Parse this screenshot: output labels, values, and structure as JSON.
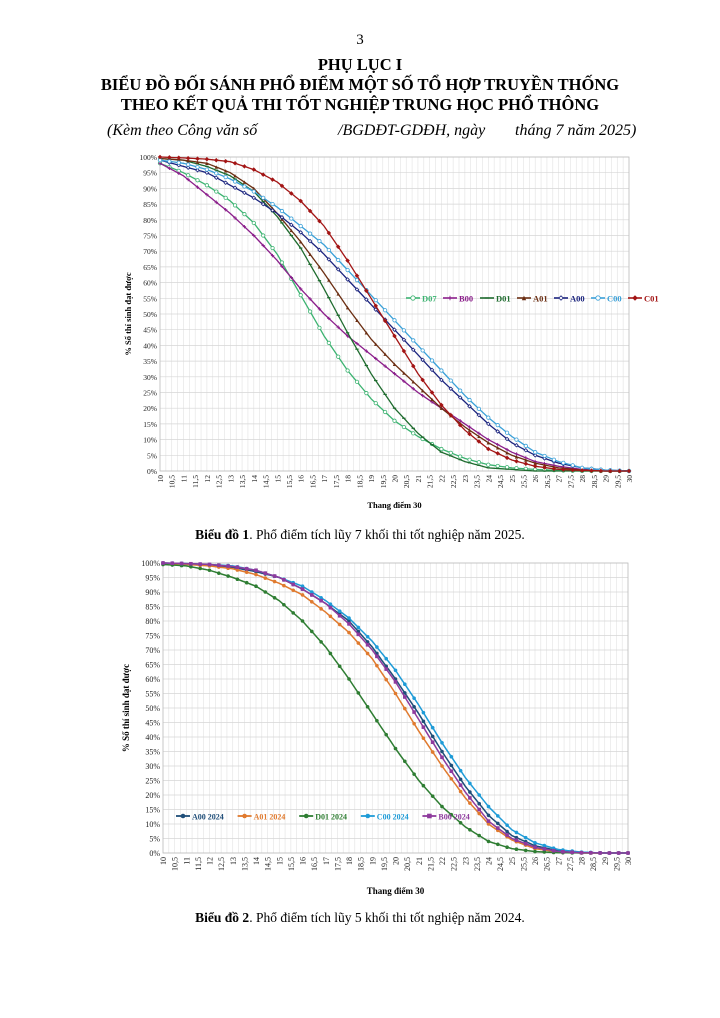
{
  "page_number": "3",
  "header": {
    "line1": "PHỤ LỤC I",
    "line2": "BIỂU ĐỒ ĐỐI SÁNH PHỔ ĐIỂM MỘT SỐ TỔ HỢP TRUYỀN THỐNG",
    "line3": "THEO KẾT QUẢ THI TỐT NGHIỆP TRUNG HỌC PHỔ THÔNG",
    "sub_a": "(Kèm theo Công văn số",
    "sub_b": "/BGDĐT-GDĐH, ngày",
    "sub_c": "tháng 7 năm 2025)"
  },
  "captions": [
    {
      "label": "Biểu đồ 1",
      "text": ". Phổ điểm tích lũy 7 khối thi tốt nghiệp năm 2025."
    },
    {
      "label": "Biểu đồ 2",
      "text": ". Phổ điểm tích lũy 5 khối thi tốt nghiệp năm 2024."
    }
  ],
  "chart_data": [
    {
      "type": "line",
      "xlabel": "Thang điểm 30",
      "ylabel": "% Số thí sinh đạt được",
      "xlim": [
        10,
        30
      ],
      "ylim": [
        0,
        100
      ],
      "x_ticks": [
        "10",
        "10,5",
        "11",
        "11,5",
        "12",
        "12,5",
        "13",
        "13,5",
        "14",
        "14,5",
        "15",
        "15,5",
        "16",
        "16,5",
        "17",
        "17,5",
        "18",
        "18,5",
        "19",
        "19,5",
        "20",
        "20,5",
        "21",
        "21,5",
        "22",
        "22,5",
        "23",
        "23,5",
        "24",
        "24,5",
        "25",
        "25,5",
        "26",
        "26,5",
        "27",
        "27,5",
        "28",
        "28,5",
        "29",
        "29,5",
        "30"
      ],
      "y_ticks": [
        "0%",
        "5%",
        "10%",
        "15%",
        "20%",
        "25%",
        "30%",
        "35%",
        "40%",
        "45%",
        "50%",
        "55%",
        "60%",
        "65%",
        "70%",
        "75%",
        "80%",
        "85%",
        "90%",
        "95%",
        "100%"
      ],
      "grid": true,
      "legend_position": "right-middle",
      "series": [
        {
          "name": "D07",
          "color": "#3cb371",
          "marker": "open-circle",
          "x": [
            10,
            11,
            12,
            13,
            14,
            15,
            16,
            17,
            18,
            19,
            20,
            21,
            22,
            23,
            24,
            25,
            26,
            27,
            28,
            29,
            30
          ],
          "values": [
            98,
            95,
            91,
            86,
            79,
            69,
            56,
            43,
            32,
            23,
            16,
            11,
            7,
            4,
            2,
            1,
            0.5,
            0.2,
            0,
            0,
            0
          ]
        },
        {
          "name": "B00",
          "color": "#8b1e8b",
          "marker": "plus",
          "x": [
            10,
            11,
            12,
            13,
            14,
            15,
            16,
            17,
            18,
            19,
            20,
            21,
            22,
            23,
            24,
            25,
            26,
            27,
            28,
            29,
            30
          ],
          "values": [
            98,
            94,
            88,
            82,
            75,
            67,
            58,
            50,
            43,
            37,
            31,
            25,
            20,
            15,
            10,
            6,
            3,
            1.5,
            0.5,
            0,
            0
          ]
        },
        {
          "name": "D01",
          "color": "#1e6b2e",
          "marker": "dash",
          "x": [
            10,
            11,
            12,
            13,
            14,
            15,
            16,
            17,
            18,
            19,
            20,
            21,
            22,
            23,
            24,
            25,
            26,
            27,
            28,
            29,
            30
          ],
          "values": [
            99.5,
            99,
            97,
            94,
            89,
            81,
            71,
            58,
            44,
            31,
            20,
            12,
            6,
            3,
            1,
            0.5,
            0,
            0,
            0,
            0,
            0
          ]
        },
        {
          "name": "A01",
          "color": "#6b2e12",
          "marker": "triangle",
          "x": [
            10,
            11,
            12,
            13,
            14,
            15,
            16,
            17,
            18,
            19,
            20,
            21,
            22,
            23,
            24,
            25,
            26,
            27,
            28,
            29,
            30
          ],
          "values": [
            99.5,
            99,
            98,
            95,
            90,
            82,
            73,
            63,
            52,
            42,
            34,
            27,
            20,
            14,
            9,
            5,
            2.5,
            1,
            0.3,
            0,
            0
          ]
        },
        {
          "name": "A00",
          "color": "#1a237e",
          "marker": "open-diamond",
          "x": [
            10,
            11,
            12,
            13,
            14,
            15,
            16,
            17,
            18,
            19,
            20,
            21,
            22,
            23,
            24,
            25,
            26,
            27,
            28,
            29,
            30
          ],
          "values": [
            99,
            97,
            95,
            91,
            87,
            82,
            76,
            69,
            61,
            53,
            45,
            37,
            29,
            22,
            15,
            9,
            5,
            2.5,
            1,
            0.3,
            0
          ]
        },
        {
          "name": "C00",
          "color": "#3aa0d8",
          "marker": "open-circle",
          "x": [
            10,
            11,
            12,
            13,
            14,
            15,
            16,
            17,
            18,
            19,
            20,
            21,
            22,
            23,
            24,
            25,
            26,
            27,
            28,
            29,
            30
          ],
          "values": [
            99,
            98,
            96,
            93,
            89,
            84,
            78,
            72,
            64,
            56,
            48,
            40,
            32,
            24,
            17,
            11,
            6,
            3,
            1,
            0.3,
            0
          ]
        },
        {
          "name": "C01",
          "color": "#a31515",
          "marker": "diamond",
          "x": [
            10,
            11,
            12,
            13,
            14,
            15,
            16,
            17,
            18,
            19,
            20,
            21,
            22,
            23,
            24,
            25,
            26,
            27,
            28,
            29,
            30
          ],
          "values": [
            100,
            99.7,
            99.3,
            98.5,
            96,
            92,
            86,
            78,
            67,
            55,
            43,
            31,
            21,
            13,
            7,
            3.5,
            1.5,
            0.5,
            0.2,
            0,
            0
          ]
        }
      ]
    },
    {
      "type": "line",
      "xlabel": "Thang điểm 30",
      "ylabel": "% Số thí sinh đạt được",
      "xlim": [
        10,
        30
      ],
      "ylim": [
        0,
        100
      ],
      "x_ticks": [
        "10",
        "10,5",
        "11",
        "11,5",
        "12",
        "12,5",
        "13",
        "13,5",
        "14",
        "14,5",
        "15",
        "15,5",
        "16",
        "16,5",
        "17",
        "17,5",
        "18",
        "18,5",
        "19",
        "19,5",
        "20",
        "20,5",
        "21",
        "21,5",
        "22",
        "22,5",
        "23",
        "23,5",
        "24",
        "24,5",
        "25",
        "25,5",
        "26",
        "26,5",
        "27",
        "27,5",
        "28",
        "28,5",
        "29",
        "29,5",
        "30"
      ],
      "y_ticks": [
        "0%",
        "5%",
        "10%",
        "15%",
        "20%",
        "25%",
        "30%",
        "35%",
        "40%",
        "45%",
        "50%",
        "55%",
        "60%",
        "65%",
        "70%",
        "75%",
        "80%",
        "85%",
        "90%",
        "95%",
        "100%"
      ],
      "grid": true,
      "legend_position": "bottom-left",
      "series": [
        {
          "name": "A00 2024",
          "color": "#1f4e79",
          "marker": "dot",
          "x": [
            10,
            11,
            12,
            13,
            14,
            15,
            16,
            17,
            18,
            19,
            20,
            21,
            22,
            23,
            24,
            25,
            26,
            27,
            28,
            29,
            30
          ],
          "values": [
            100,
            99.8,
            99.3,
            98.5,
            97,
            95,
            91,
            86,
            80,
            71,
            60,
            48,
            35,
            23,
            13,
            6,
            2.5,
            0.8,
            0.2,
            0,
            0
          ]
        },
        {
          "name": "A01 2024",
          "color": "#e07a2e",
          "marker": "dot",
          "x": [
            10,
            11,
            12,
            13,
            14,
            15,
            16,
            17,
            18,
            19,
            20,
            21,
            22,
            23,
            24,
            25,
            26,
            27,
            28,
            29,
            30
          ],
          "values": [
            100,
            99.5,
            99,
            98,
            96,
            93,
            89,
            83,
            76,
            67,
            55,
            42,
            30,
            19,
            10,
            4.5,
            1.5,
            0.4,
            0,
            0,
            0
          ]
        },
        {
          "name": "D01 2024",
          "color": "#2e7d32",
          "marker": "dot",
          "x": [
            10,
            11,
            12,
            13,
            14,
            15,
            16,
            17,
            18,
            19,
            20,
            21,
            22,
            23,
            24,
            25,
            26,
            27,
            28,
            29,
            30
          ],
          "values": [
            99.5,
            99,
            97.5,
            95,
            92,
            87,
            80,
            71,
            60,
            48,
            36,
            25,
            16,
            9,
            4,
            1.5,
            0.5,
            0.1,
            0,
            0,
            0
          ]
        },
        {
          "name": "C00 2024",
          "color": "#1e9bd7",
          "marker": "dot",
          "x": [
            10,
            11,
            12,
            13,
            14,
            15,
            16,
            17,
            18,
            19,
            20,
            21,
            22,
            23,
            24,
            25,
            26,
            27,
            28,
            29,
            30
          ],
          "values": [
            100,
            99.8,
            99.5,
            99,
            97.5,
            95,
            92,
            87,
            81,
            73,
            63,
            51,
            38,
            26,
            16,
            8,
            3.5,
            1.2,
            0.3,
            0,
            0
          ]
        },
        {
          "name": "B00 2024",
          "color": "#8e3a9d",
          "marker": "square",
          "x": [
            10,
            11,
            12,
            13,
            14,
            15,
            16,
            17,
            18,
            19,
            20,
            21,
            22,
            23,
            24,
            25,
            26,
            27,
            28,
            29,
            30
          ],
          "values": [
            100,
            99.8,
            99.5,
            98.8,
            97.5,
            95,
            91,
            86,
            79,
            70,
            59,
            46,
            33,
            21,
            11,
            5,
            2,
            0.5,
            0.1,
            0,
            0
          ]
        }
      ]
    }
  ]
}
